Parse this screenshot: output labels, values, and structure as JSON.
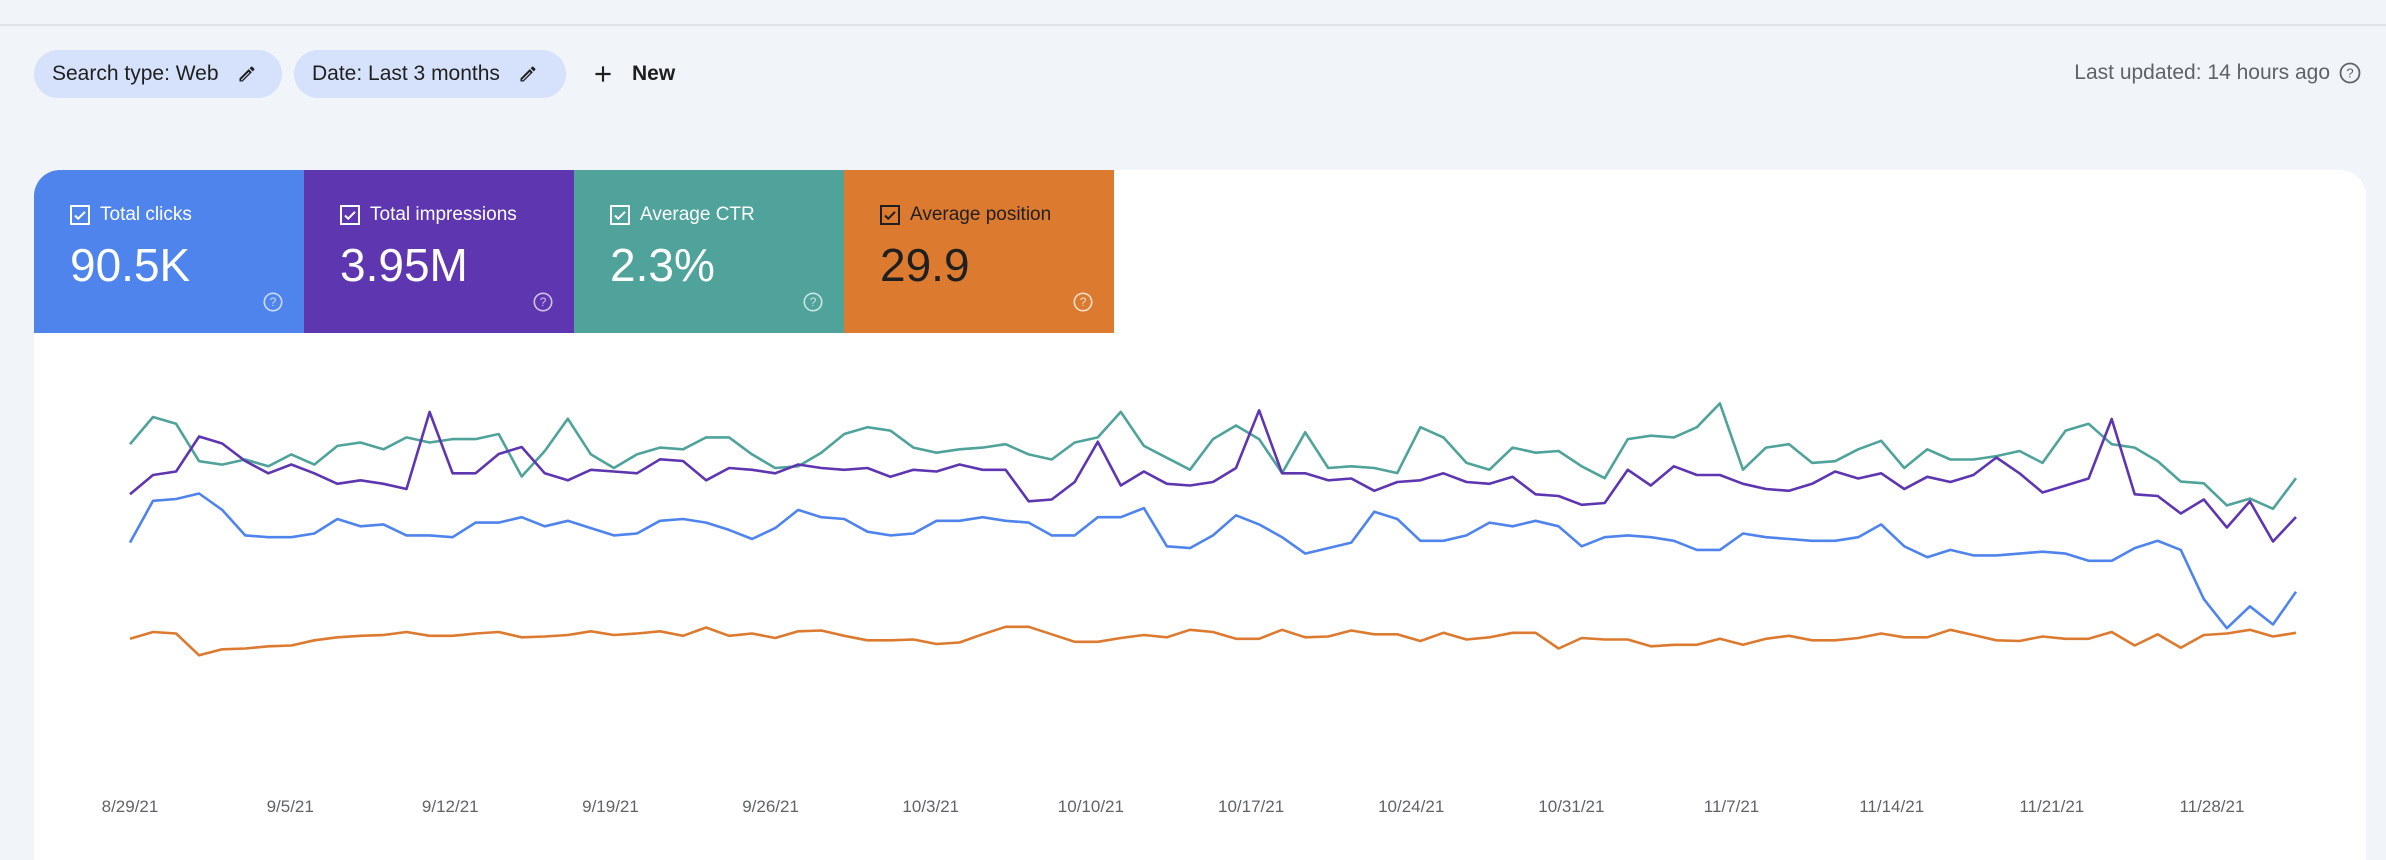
{
  "filters": {
    "search_type": "Search type: Web",
    "date_range": "Date: Last 3 months",
    "new_label": "New"
  },
  "last_updated": "Last updated: 14 hours ago",
  "metrics": [
    {
      "label": "Total clicks",
      "value": "90.5K",
      "color": "#4f84ec",
      "checked": true
    },
    {
      "label": "Total impressions",
      "value": "3.95M",
      "color": "#5d36b0",
      "checked": true
    },
    {
      "label": "Average CTR",
      "value": "2.3%",
      "color": "#4fa39a",
      "checked": true
    },
    {
      "label": "Average position",
      "value": "29.9",
      "color": "#dc7a30",
      "checked": true
    }
  ],
  "chart_data": {
    "type": "line",
    "x_tick_labels": [
      "8/29/21",
      "9/5/21",
      "9/12/21",
      "9/19/21",
      "9/26/21",
      "10/3/21",
      "10/10/21",
      "10/17/21",
      "10/24/21",
      "10/31/21",
      "11/7/21",
      "11/14/21",
      "11/21/21",
      "11/28/21"
    ],
    "y_scale": "each series on its own unlabeled axis; values are relative levels (0-100)",
    "grid": false,
    "series": [
      {
        "name": "Total clicks",
        "color": "#4f84ec",
        "values": [
          48,
          71,
          72,
          75,
          66,
          52,
          51,
          51,
          53,
          61,
          57,
          58,
          52,
          52,
          51,
          59,
          59,
          62,
          57,
          60,
          56,
          52,
          53,
          60,
          61,
          59,
          55,
          50,
          56,
          66,
          62,
          61,
          54,
          52,
          53,
          60,
          60,
          62,
          60,
          59,
          52,
          52,
          62,
          62,
          67,
          46,
          45,
          52,
          63,
          58,
          51,
          42,
          45,
          48,
          65,
          61,
          49,
          49,
          52,
          59,
          57,
          60,
          57,
          46,
          51,
          52,
          51,
          49,
          44,
          44,
          53,
          51,
          50,
          49,
          49,
          51,
          58,
          46,
          40,
          44,
          41,
          41,
          42,
          43,
          42,
          38,
          38,
          45,
          49,
          44,
          17,
          1,
          13,
          3,
          21
        ]
      },
      {
        "name": "Total impressions",
        "color": "#5d36b0",
        "values": [
          49,
          60,
          62,
          82,
          78,
          68,
          61,
          66,
          61,
          55,
          57,
          55,
          52,
          96,
          61,
          61,
          72,
          76,
          61,
          57,
          63,
          62,
          61,
          69,
          68,
          57,
          64,
          63,
          61,
          66,
          64,
          63,
          64,
          59,
          63,
          62,
          66,
          63,
          63,
          45,
          46,
          56,
          79,
          54,
          62,
          55,
          54,
          56,
          64,
          97,
          61,
          61,
          57,
          58,
          51,
          56,
          57,
          61,
          56,
          55,
          59,
          49,
          48,
          43,
          44,
          63,
          54,
          65,
          60,
          60,
          55,
          52,
          51,
          55,
          62,
          58,
          61,
          52,
          59,
          56,
          60,
          70,
          61,
          50,
          54,
          58,
          92,
          49,
          48,
          38,
          46,
          30,
          45,
          22,
          36
        ]
      },
      {
        "name": "Average CTR",
        "color": "#4fa39a",
        "values": [
          74,
          90,
          86,
          64,
          62,
          65,
          61,
          68,
          62,
          73,
          75,
          71,
          78,
          75,
          77,
          77,
          80,
          55,
          70,
          89,
          68,
          60,
          68,
          72,
          71,
          78,
          78,
          68,
          60,
          61,
          69,
          80,
          84,
          82,
          72,
          69,
          71,
          72,
          74,
          68,
          65,
          75,
          78,
          93,
          73,
          66,
          59,
          77,
          85,
          77,
          57,
          81,
          60,
          61,
          60,
          57,
          84,
          78,
          63,
          59,
          72,
          69,
          70,
          61,
          54,
          77,
          79,
          78,
          84,
          98,
          59,
          72,
          74,
          63,
          64,
          71,
          76,
          60,
          71,
          65,
          65,
          67,
          70,
          63,
          82,
          86,
          74,
          72,
          64,
          52,
          51,
          38,
          42,
          36,
          54
        ]
      },
      {
        "name": "Average position",
        "color": "#dc7a30",
        "values": [
          75,
          84,
          82,
          53,
          61,
          62,
          65,
          66,
          73,
          77,
          79,
          80,
          84,
          79,
          79,
          82,
          84,
          77,
          78,
          80,
          85,
          80,
          82,
          85,
          79,
          90,
          79,
          82,
          76,
          85,
          86,
          79,
          73,
          73,
          74,
          68,
          70,
          81,
          91,
          91,
          81,
          71,
          71,
          76,
          80,
          77,
          87,
          84,
          75,
          75,
          87,
          77,
          78,
          86,
          81,
          81,
          72,
          83,
          74,
          77,
          83,
          83,
          62,
          76,
          74,
          74,
          65,
          67,
          67,
          75,
          67,
          75,
          79,
          73,
          73,
          76,
          82,
          77,
          77,
          87,
          80,
          73,
          72,
          78,
          75,
          75,
          84,
          66,
          81,
          63,
          80,
          82,
          87,
          78,
          83
        ]
      }
    ]
  }
}
